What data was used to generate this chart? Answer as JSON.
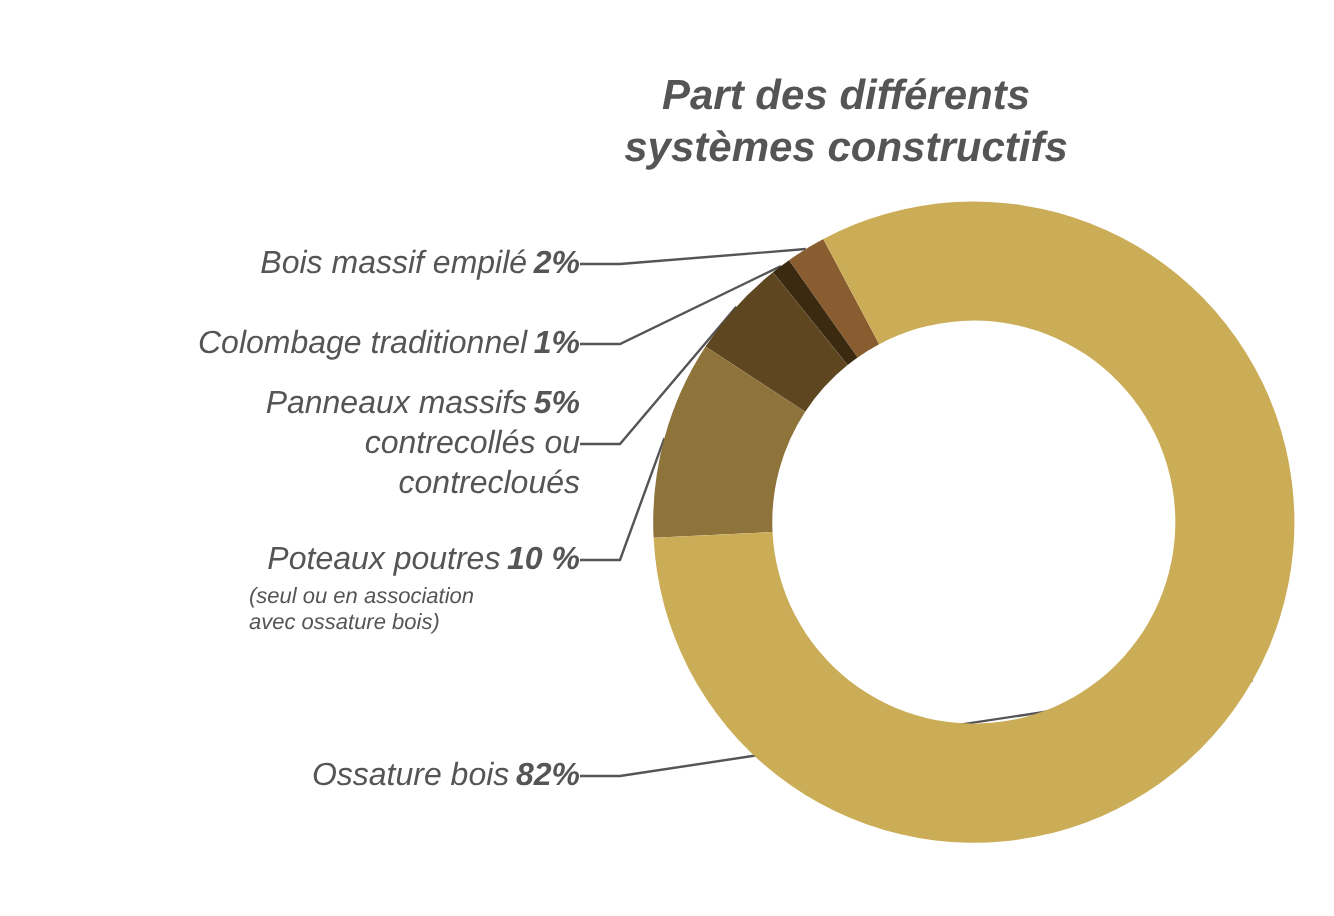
{
  "chart_data": {
    "type": "donut",
    "title": "Part des différents systèmes constructifs",
    "categories": [
      "Bois massif empilé",
      "Colombage traditionnel",
      "Panneaux massifs contrecollés ou contrecloués",
      "Poteaux poutres",
      "Ossature bois"
    ],
    "values": [
      2,
      1,
      5,
      10,
      82
    ],
    "value_labels": [
      "2%",
      "1%",
      "5%",
      "10 %",
      "82%"
    ],
    "colors": [
      "#8a5d30",
      "#3b2a10",
      "#5e4720",
      "#8e733b",
      "#cbad58"
    ],
    "annotations": [
      "(seul ou en association avec ossature bois)"
    ],
    "legend": false
  }
}
